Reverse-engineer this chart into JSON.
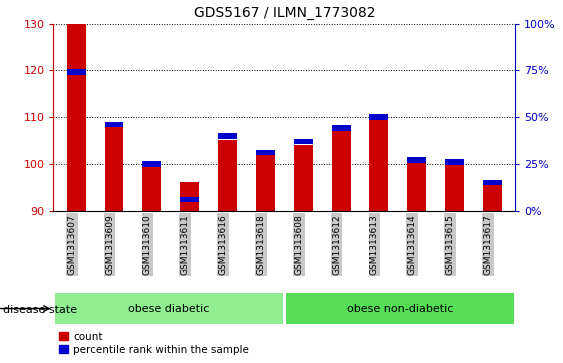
{
  "title": "GDS5167 / ILMN_1773082",
  "samples": [
    "GSM1313607",
    "GSM1313609",
    "GSM1313610",
    "GSM1313611",
    "GSM1313616",
    "GSM1313618",
    "GSM1313608",
    "GSM1313612",
    "GSM1313613",
    "GSM1313614",
    "GSM1313615",
    "GSM1313617"
  ],
  "count_values": [
    130,
    108,
    100,
    96,
    105,
    102,
    104,
    107,
    110,
    101,
    101,
    96
  ],
  "percentile_values": [
    74,
    46,
    25,
    6,
    40,
    31,
    37,
    44,
    50,
    27,
    26,
    15
  ],
  "y_min": 90,
  "y_max": 130,
  "y_ticks_left": [
    90,
    100,
    110,
    120,
    130
  ],
  "y_ticks_right": [
    0,
    25,
    50,
    75,
    100
  ],
  "left_color": "#cc0000",
  "right_color": "#0000cc",
  "bar_width": 0.5,
  "groups": [
    {
      "label": "obese diabetic",
      "start": 0,
      "end": 6,
      "color": "#90ee90"
    },
    {
      "label": "obese non-diabetic",
      "start": 6,
      "end": 12,
      "color": "#55dd55"
    }
  ],
  "group_label": "disease state",
  "legend_count": "count",
  "legend_percentile": "percentile rank within the sample",
  "background_color": "#ffffff",
  "tick_bg": "#c8c8c8",
  "blue_bar_thickness": 1.5
}
